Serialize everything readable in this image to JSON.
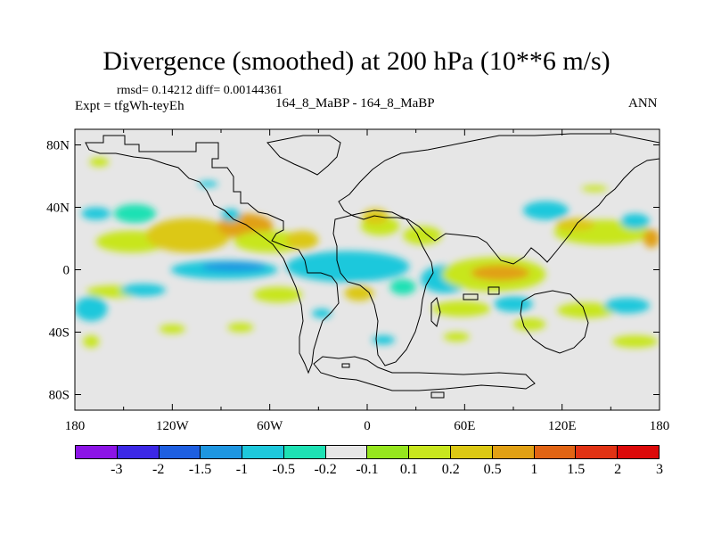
{
  "title": "Divergence (smoothed) at 200 hPa (10**6 m/s)",
  "stats": "rmsd= 0.14212 diff= 0.00144361",
  "expt": "Expt = tfgWh-teyEh",
  "case": "164_8_MaBP - 164_8_MaBP",
  "season": "ANN",
  "chart_data": {
    "type": "heatmap",
    "title": "Divergence (smoothed) at 200 hPa (10**6 m/s)",
    "xlim": [
      -180,
      180
    ],
    "ylim": [
      -90,
      90
    ],
    "x_ticks": [
      {
        "value": -180,
        "label": "180"
      },
      {
        "value": -120,
        "label": "120W"
      },
      {
        "value": -60,
        "label": "60W"
      },
      {
        "value": 0,
        "label": "0"
      },
      {
        "value": 60,
        "label": "60E"
      },
      {
        "value": 120,
        "label": "120E"
      },
      {
        "value": 180,
        "label": "180"
      }
    ],
    "y_ticks": [
      {
        "value": 80,
        "label": "80N"
      },
      {
        "value": 40,
        "label": "40N"
      },
      {
        "value": 0,
        "label": "0"
      },
      {
        "value": -40,
        "label": "40S"
      },
      {
        "value": -80,
        "label": "80S"
      }
    ],
    "colorbar": {
      "labels": [
        "-3",
        "-2",
        "-1.5",
        "-1",
        "-0.5",
        "-0.2",
        "-0.1",
        "0.1",
        "0.2",
        "0.5",
        "1",
        "1.5",
        "2",
        "3"
      ],
      "colors": [
        "#8c14e6",
        "#3c28e6",
        "#1e5fe1",
        "#1e96e1",
        "#1ec8dc",
        "#1ee1b4",
        "#e6e6e6",
        "#96e61e",
        "#c8e61e",
        "#dcc814",
        "#e1a014",
        "#e16414",
        "#e13214",
        "#dc0a0a"
      ]
    },
    "background_color": "#e6e6e6",
    "anomalies": [
      {
        "lon": -167,
        "lat": 36,
        "rlon": 9,
        "rlat": 4,
        "level": 4
      },
      {
        "lon": -143,
        "lat": 36,
        "rlon": 13,
        "rlat": 6,
        "level": 5
      },
      {
        "lon": -145,
        "lat": 18,
        "rlon": 22,
        "rlat": 7,
        "level": 8
      },
      {
        "lon": -110,
        "lat": 22,
        "rlon": 26,
        "rlat": 11,
        "level": 9
      },
      {
        "lon": -75,
        "lat": 28,
        "rlon": 17,
        "rlat": 8,
        "level": 10
      },
      {
        "lon": -84,
        "lat": 35,
        "rlon": 6,
        "rlat": 4,
        "level": 4
      },
      {
        "lon": -60,
        "lat": 18,
        "rlon": 22,
        "rlat": 7,
        "level": 8
      },
      {
        "lon": -88,
        "lat": 0,
        "rlon": 33,
        "rlat": 6,
        "level": 4
      },
      {
        "lon": -82,
        "lat": 2,
        "rlon": 20,
        "rlat": 3,
        "level": 3
      },
      {
        "lon": -40,
        "lat": 19,
        "rlon": 10,
        "rlat": 6,
        "level": 9
      },
      {
        "lon": -12,
        "lat": 2,
        "rlon": 38,
        "rlat": 10,
        "level": 4
      },
      {
        "lon": 8,
        "lat": 28,
        "rlon": 12,
        "rlat": 6,
        "level": 8
      },
      {
        "lon": 5,
        "lat": 34,
        "rlon": 8,
        "rlat": 5,
        "level": 9
      },
      {
        "lon": 48,
        "lat": -6,
        "rlon": 15,
        "rlat": 9,
        "level": 4
      },
      {
        "lon": 22,
        "lat": -11,
        "rlon": 8,
        "rlat": 5,
        "level": 5
      },
      {
        "lon": 78,
        "lat": -3,
        "rlon": 32,
        "rlat": 11,
        "level": 8
      },
      {
        "lon": 82,
        "lat": -2,
        "rlon": 18,
        "rlat": 5,
        "level": 10
      },
      {
        "lon": 34,
        "lat": 22,
        "rlon": 12,
        "rlat": 6,
        "level": 8
      },
      {
        "lon": 145,
        "lat": 24,
        "rlon": 30,
        "rlat": 8,
        "level": 8
      },
      {
        "lon": 128,
        "lat": 29,
        "rlon": 12,
        "rlat": 4,
        "level": 9
      },
      {
        "lon": 165,
        "lat": 31,
        "rlon": 9,
        "rlat": 5,
        "level": 4
      },
      {
        "lon": 110,
        "lat": 38,
        "rlon": 14,
        "rlat": 6,
        "level": 4
      },
      {
        "lon": 175,
        "lat": 20,
        "rlon": 5,
        "rlat": 6,
        "level": 10
      },
      {
        "lon": -155,
        "lat": -14,
        "rlon": 18,
        "rlat": 4,
        "level": 8
      },
      {
        "lon": -138,
        "lat": -13,
        "rlon": 14,
        "rlat": 4,
        "level": 4
      },
      {
        "lon": -170,
        "lat": -25,
        "rlon": 10,
        "rlat": 8,
        "level": 4
      },
      {
        "lon": -55,
        "lat": -16,
        "rlon": 15,
        "rlat": 5,
        "level": 8
      },
      {
        "lon": -5,
        "lat": -15,
        "rlon": 9,
        "rlat": 5,
        "level": 9
      },
      {
        "lon": -28,
        "lat": -28,
        "rlon": 6,
        "rlat": 3,
        "level": 4
      },
      {
        "lon": 58,
        "lat": -25,
        "rlon": 18,
        "rlat": 5,
        "level": 8
      },
      {
        "lon": 90,
        "lat": -22,
        "rlon": 12,
        "rlat": 5,
        "level": 4
      },
      {
        "lon": 135,
        "lat": -26,
        "rlon": 18,
        "rlat": 5,
        "level": 8
      },
      {
        "lon": 160,
        "lat": -23,
        "rlon": 14,
        "rlat": 5,
        "level": 4
      },
      {
        "lon": 165,
        "lat": -46,
        "rlon": 14,
        "rlat": 4,
        "level": 8
      },
      {
        "lon": -165,
        "lat": 69,
        "rlon": 6,
        "rlat": 3,
        "level": 8
      },
      {
        "lon": -98,
        "lat": 55,
        "rlon": 6,
        "rlat": 2,
        "level": 4
      },
      {
        "lon": 140,
        "lat": 52,
        "rlon": 8,
        "rlat": 2,
        "level": 8
      },
      {
        "lon": -120,
        "lat": -38,
        "rlon": 8,
        "rlat": 3,
        "level": 8
      },
      {
        "lon": -170,
        "lat": -46,
        "rlon": 5,
        "rlat": 4,
        "level": 8
      },
      {
        "lon": -78,
        "lat": -37,
        "rlon": 8,
        "rlat": 3,
        "level": 8
      },
      {
        "lon": 10,
        "lat": -45,
        "rlon": 7,
        "rlat": 3,
        "level": 4
      },
      {
        "lon": 55,
        "lat": -43,
        "rlon": 8,
        "rlat": 3,
        "level": 8
      },
      {
        "lon": 100,
        "lat": -35,
        "rlon": 10,
        "rlat": 4,
        "level": 8
      }
    ]
  }
}
